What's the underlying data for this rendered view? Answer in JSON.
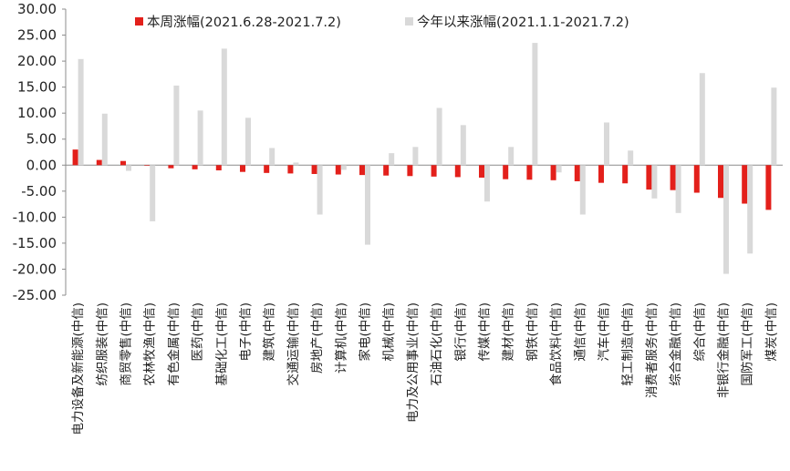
{
  "chart_data": {
    "type": "bar",
    "title": "",
    "xlabel": "",
    "ylabel": "",
    "ylim": [
      -25,
      30
    ],
    "yticks": [
      "30.00",
      "25.00",
      "20.00",
      "15.00",
      "10.00",
      "5.00",
      "0.00",
      "-5.00",
      "-10.00",
      "-15.00",
      "-20.00",
      "-25.00"
    ],
    "ytick_values": [
      30,
      25,
      20,
      15,
      10,
      5,
      0,
      -5,
      -10,
      -15,
      -20,
      -25
    ],
    "grid": false,
    "legend_position": "top",
    "categories": [
      "电力设备及新能源(中信)",
      "纺织服装(中信)",
      "商贸零售(中信)",
      "农林牧渔(中信)",
      "有色金属(中信)",
      "医药(中信)",
      "基础化工(中信)",
      "电子(中信)",
      "建筑(中信)",
      "交通运输(中信)",
      "房地产(中信)",
      "计算机(中信)",
      "家电(中信)",
      "机械(中信)",
      "电力及公用事业(中信)",
      "石油石化(中信)",
      "银行(中信)",
      "传媒(中信)",
      "建材(中信)",
      "钢铁(中信)",
      "食品饮料(中信)",
      "通信(中信)",
      "汽车(中信)",
      "轻工制造(中信)",
      "消费者服务(中信)",
      "综合金融(中信)",
      "综合(中信)",
      "非银行金融(中信)",
      "国防军工(中信)",
      "煤炭(中信)"
    ],
    "series": [
      {
        "name": "本周涨幅(2021.6.28-2021.7.2)",
        "color": "#e3201b",
        "values": [
          3.0,
          1.0,
          0.8,
          -0.1,
          -0.6,
          -0.8,
          -1.0,
          -1.3,
          -1.5,
          -1.6,
          -1.7,
          -1.8,
          -1.9,
          -2.0,
          -2.1,
          -2.2,
          -2.3,
          -2.4,
          -2.7,
          -2.8,
          -2.9,
          -3.1,
          -3.4,
          -3.5,
          -4.7,
          -4.8,
          -5.3,
          -6.3,
          -7.4,
          -8.6
        ]
      },
      {
        "name": "今年以来涨幅(2021.1.1-2021.7.2)",
        "color": "#d9d9d9",
        "values": [
          20.4,
          9.9,
          -1.1,
          -10.8,
          15.3,
          10.5,
          22.4,
          9.1,
          3.3,
          0.5,
          -9.5,
          -0.9,
          -15.3,
          2.3,
          3.5,
          11.0,
          7.7,
          -7.0,
          3.5,
          23.5,
          -1.4,
          -9.5,
          8.2,
          2.8,
          -6.4,
          -9.2,
          17.7,
          -20.9,
          -17.0,
          14.9
        ]
      }
    ]
  }
}
